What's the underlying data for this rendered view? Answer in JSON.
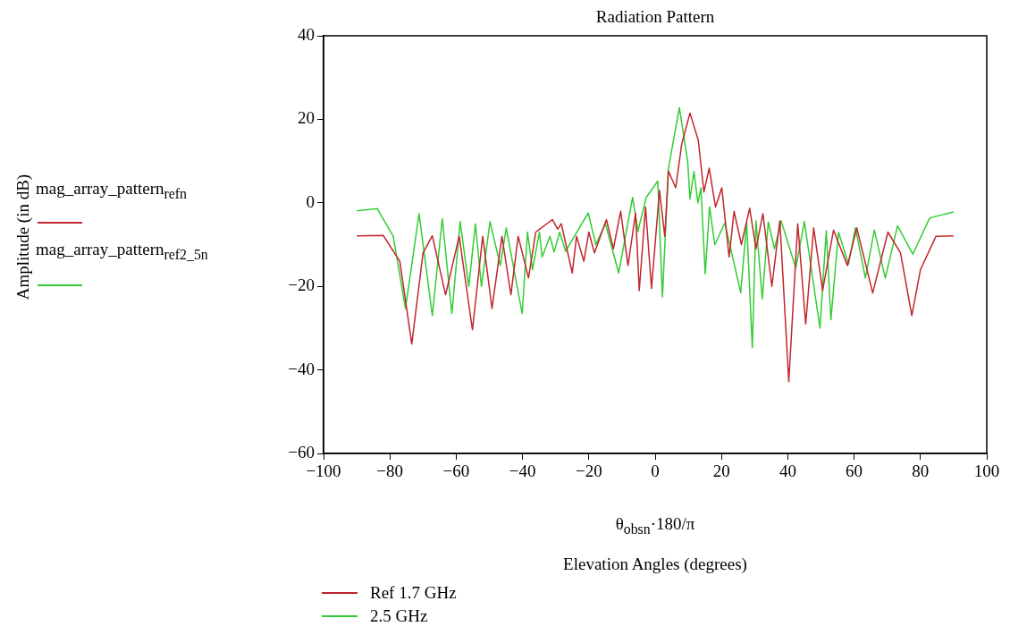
{
  "chart_data": {
    "type": "line",
    "title": "Radiation Pattern",
    "xlabel": "Elevation Angles (degrees)",
    "annotations": [
      "Amplitude (in dB)",
      "θ$_{obs}$$_{n}$·180/π",
      "mag_array_pattern$_{ref}$$_{n}$",
      "mag_array_pattern$_{ref2_5}$$_{n}$"
    ],
    "xlim": [
      -100,
      100
    ],
    "xticks": [
      -100,
      -80,
      -60,
      -40,
      -20,
      0,
      20,
      40,
      60,
      80,
      100
    ],
    "ylim": [
      -60,
      40
    ],
    "yticks": [
      -60,
      -40,
      -20,
      0,
      20,
      40
    ],
    "grid": false,
    "legend": "bottom left",
    "marker": "none",
    "line_style": "solid",
    "series": [
      {
        "name": "Ref 1.7 GHz",
        "color": "#c0262d",
        "x": [
          -90,
          -82,
          -77,
          -73.4,
          -70,
          -67.2,
          -63.2,
          -59.1,
          -55.1,
          -52,
          -49.2,
          -46.2,
          -43.5,
          -41.3,
          -38.2,
          -36,
          -31,
          -29.4,
          -28.3,
          -25,
          -23.7,
          -21.5,
          -20,
          -18.3,
          -14.7,
          -12.6,
          -10.4,
          -8.2,
          -5.9,
          -4.8,
          -2.9,
          -1.1,
          1.3,
          2.9,
          4,
          6.2,
          8,
          10.5,
          13,
          14.7,
          16.3,
          18.2,
          20.1,
          22.3,
          23.8,
          26,
          28.5,
          30.4,
          32.5,
          35.2,
          37.6,
          40.3,
          43,
          45.4,
          47.8,
          50.5,
          53.8,
          55.5,
          58,
          60.8,
          65.6,
          70.2,
          74,
          77.4,
          80,
          84.7,
          90
        ],
        "values": [
          -7.9,
          -7.8,
          -14,
          -33.8,
          -12,
          -7.9,
          -22,
          -8,
          -30.4,
          -8,
          -25.3,
          -8,
          -22,
          -8,
          -18,
          -7,
          -4,
          -6.3,
          -5,
          -16.8,
          -8,
          -14,
          -7,
          -12,
          -4,
          -11,
          -2,
          -15,
          -2.5,
          -21,
          -1,
          -20.5,
          3,
          -8,
          7.6,
          3.6,
          14,
          21.5,
          15,
          2.6,
          8.3,
          -1,
          3.6,
          -13,
          -2,
          -10,
          -1.3,
          -11,
          -2.6,
          -20,
          -4.3,
          -42.8,
          -5,
          -29,
          -6,
          -21,
          -6.5,
          -10,
          -15,
          -6,
          -21.6,
          -7,
          -12,
          -27,
          -16,
          -8,
          -7.9
        ]
      },
      {
        "name": "2.5 GHz",
        "color": "#33cc33",
        "x": [
          -90,
          -83.8,
          -79,
          -75.3,
          -71.2,
          -67.2,
          -64.2,
          -61.3,
          -58.8,
          -56.2,
          -54.2,
          -52.4,
          -49.8,
          -46.7,
          -44.9,
          -40.1,
          -38.5,
          -37,
          -34.9,
          -34.1,
          -31.7,
          -30.5,
          -28.8,
          -27,
          -20.2,
          -17.9,
          -15,
          -11,
          -6.8,
          -5.2,
          -2.7,
          0.8,
          2.2,
          4,
          7.3,
          9.8,
          10.5,
          11.7,
          12.9,
          13.8,
          15.1,
          16.4,
          18,
          21,
          25.8,
          27.6,
          29.3,
          30.4,
          32.3,
          34.1,
          36,
          38,
          42.4,
          45,
          49.7,
          51.6,
          53,
          55.3,
          58.3,
          60.4,
          63.4,
          66.1,
          69.4,
          73.1,
          77.7,
          82.8,
          90
        ],
        "values": [
          -1.9,
          -1.4,
          -8,
          -25.3,
          -2.6,
          -27,
          -3.8,
          -26.5,
          -4.5,
          -20,
          -5,
          -20,
          -4.5,
          -15,
          -6,
          -26.5,
          -7,
          -16,
          -7,
          -13,
          -8,
          -11.8,
          -7,
          -11.6,
          -2.4,
          -10,
          -5,
          -16.8,
          1.3,
          -6.8,
          1.3,
          5.2,
          -22.5,
          8.3,
          22.8,
          10,
          0.9,
          7.5,
          0,
          3.6,
          -17,
          -1,
          -10,
          -4.8,
          -21.5,
          -4.7,
          -34.7,
          -4.3,
          -23,
          -4.6,
          -11,
          -4.3,
          -15.6,
          -4.5,
          -30,
          -6.7,
          -28,
          -7,
          -14.7,
          -6,
          -18,
          -6.5,
          -18,
          -5.5,
          -12.3,
          -3.6,
          -2.2
        ]
      }
    ]
  }
}
